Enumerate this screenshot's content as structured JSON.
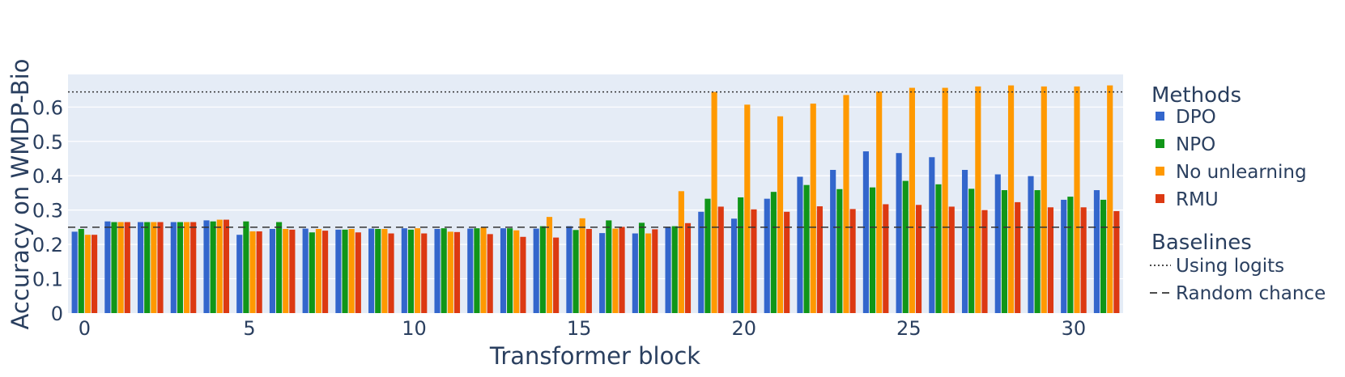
{
  "chart_data": {
    "type": "bar",
    "xlabel": "Transformer block",
    "ylabel": "Accuracy on WMDP-Bio",
    "x": [
      0,
      1,
      2,
      3,
      4,
      5,
      6,
      7,
      8,
      9,
      10,
      11,
      12,
      13,
      14,
      15,
      16,
      17,
      18,
      19,
      20,
      21,
      22,
      23,
      24,
      25,
      26,
      27,
      28,
      29,
      30,
      31
    ],
    "x_ticks": [
      0,
      5,
      10,
      15,
      20,
      25,
      30
    ],
    "y_ticks": [
      0,
      0.1,
      0.2,
      0.3,
      0.4,
      0.5,
      0.6
    ],
    "ylim": [
      0,
      0.695
    ],
    "xlim": [
      -0.5,
      31.5
    ],
    "grid": true,
    "legend_placement": "right",
    "legend_title_methods": "Methods",
    "legend_title_baselines": "Baselines",
    "series": [
      {
        "name": "DPO",
        "color": "#3366cc",
        "values": [
          0.237,
          0.267,
          0.265,
          0.265,
          0.27,
          0.228,
          0.245,
          0.246,
          0.243,
          0.246,
          0.247,
          0.245,
          0.246,
          0.247,
          0.246,
          0.253,
          0.233,
          0.232,
          0.251,
          0.295,
          0.275,
          0.333,
          0.397,
          0.417,
          0.471,
          0.466,
          0.454,
          0.417,
          0.404,
          0.399,
          0.33,
          0.358
        ]
      },
      {
        "name": "NPO",
        "color": "#109618",
        "values": [
          0.245,
          0.265,
          0.265,
          0.265,
          0.267,
          0.267,
          0.265,
          0.235,
          0.243,
          0.245,
          0.243,
          0.247,
          0.247,
          0.247,
          0.253,
          0.242,
          0.27,
          0.263,
          0.253,
          0.333,
          0.337,
          0.353,
          0.373,
          0.361,
          0.366,
          0.385,
          0.375,
          0.362,
          0.358,
          0.358,
          0.339,
          0.33
        ]
      },
      {
        "name": "No unlearning",
        "color": "#ff9900",
        "values": [
          0.228,
          0.265,
          0.265,
          0.265,
          0.272,
          0.238,
          0.245,
          0.245,
          0.245,
          0.245,
          0.247,
          0.237,
          0.25,
          0.241,
          0.28,
          0.276,
          0.246,
          0.232,
          0.355,
          0.644,
          0.607,
          0.573,
          0.61,
          0.635,
          0.645,
          0.656,
          0.656,
          0.66,
          0.663,
          0.66,
          0.66,
          0.663
        ]
      },
      {
        "name": "RMU",
        "color": "#dc3912",
        "values": [
          0.228,
          0.265,
          0.265,
          0.265,
          0.272,
          0.238,
          0.243,
          0.24,
          0.235,
          0.232,
          0.232,
          0.236,
          0.23,
          0.222,
          0.22,
          0.245,
          0.251,
          0.244,
          0.262,
          0.31,
          0.302,
          0.295,
          0.311,
          0.303,
          0.317,
          0.315,
          0.31,
          0.3,
          0.323,
          0.308,
          0.308,
          0.297
        ]
      }
    ],
    "baselines": [
      {
        "name": "Using logits",
        "value": 0.644,
        "dash": "dotted",
        "color": "#333333"
      },
      {
        "name": "Random chance",
        "value": 0.25,
        "dash": "dashed",
        "color": "#333333"
      }
    ]
  }
}
